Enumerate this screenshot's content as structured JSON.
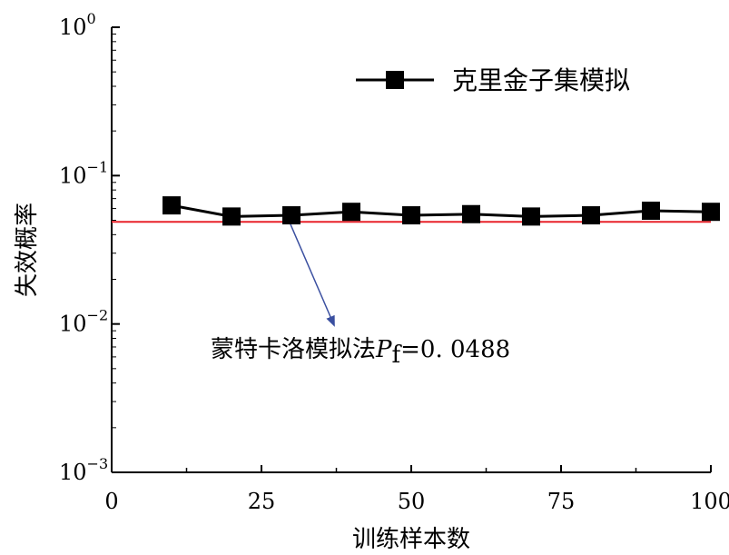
{
  "chart_data": {
    "type": "line",
    "title": "",
    "xlabel": "训练样本数",
    "ylabel": "失效概率",
    "xlim": [
      0,
      100
    ],
    "ylim": [
      0.001,
      1
    ],
    "yscale": "log",
    "x_ticks": [
      0,
      25,
      50,
      75,
      100
    ],
    "y_ticks": [
      {
        "value": 1,
        "base": "10",
        "exp": "0"
      },
      {
        "value": 0.1,
        "base": "10",
        "exp": "−1"
      },
      {
        "value": 0.01,
        "base": "10",
        "exp": "−2"
      },
      {
        "value": 0.001,
        "base": "10",
        "exp": "−3"
      }
    ],
    "series": [
      {
        "name": "克里金子集模拟",
        "color": "#000000",
        "marker": "square",
        "x": [
          10,
          20,
          30,
          40,
          50,
          60,
          70,
          80,
          90,
          100
        ],
        "y": [
          0.063,
          0.053,
          0.054,
          0.057,
          0.054,
          0.055,
          0.053,
          0.054,
          0.058,
          0.057
        ]
      }
    ],
    "reference_line": {
      "value": 0.0488,
      "color": "#e8222a"
    },
    "annotation": {
      "text": "蒙特卡洛模拟法",
      "symbol": "P",
      "subscript": "f",
      "value_text": "=0. 0488",
      "arrow_color": "#3a4fa0"
    },
    "legend": {
      "placement": "top-right"
    }
  }
}
